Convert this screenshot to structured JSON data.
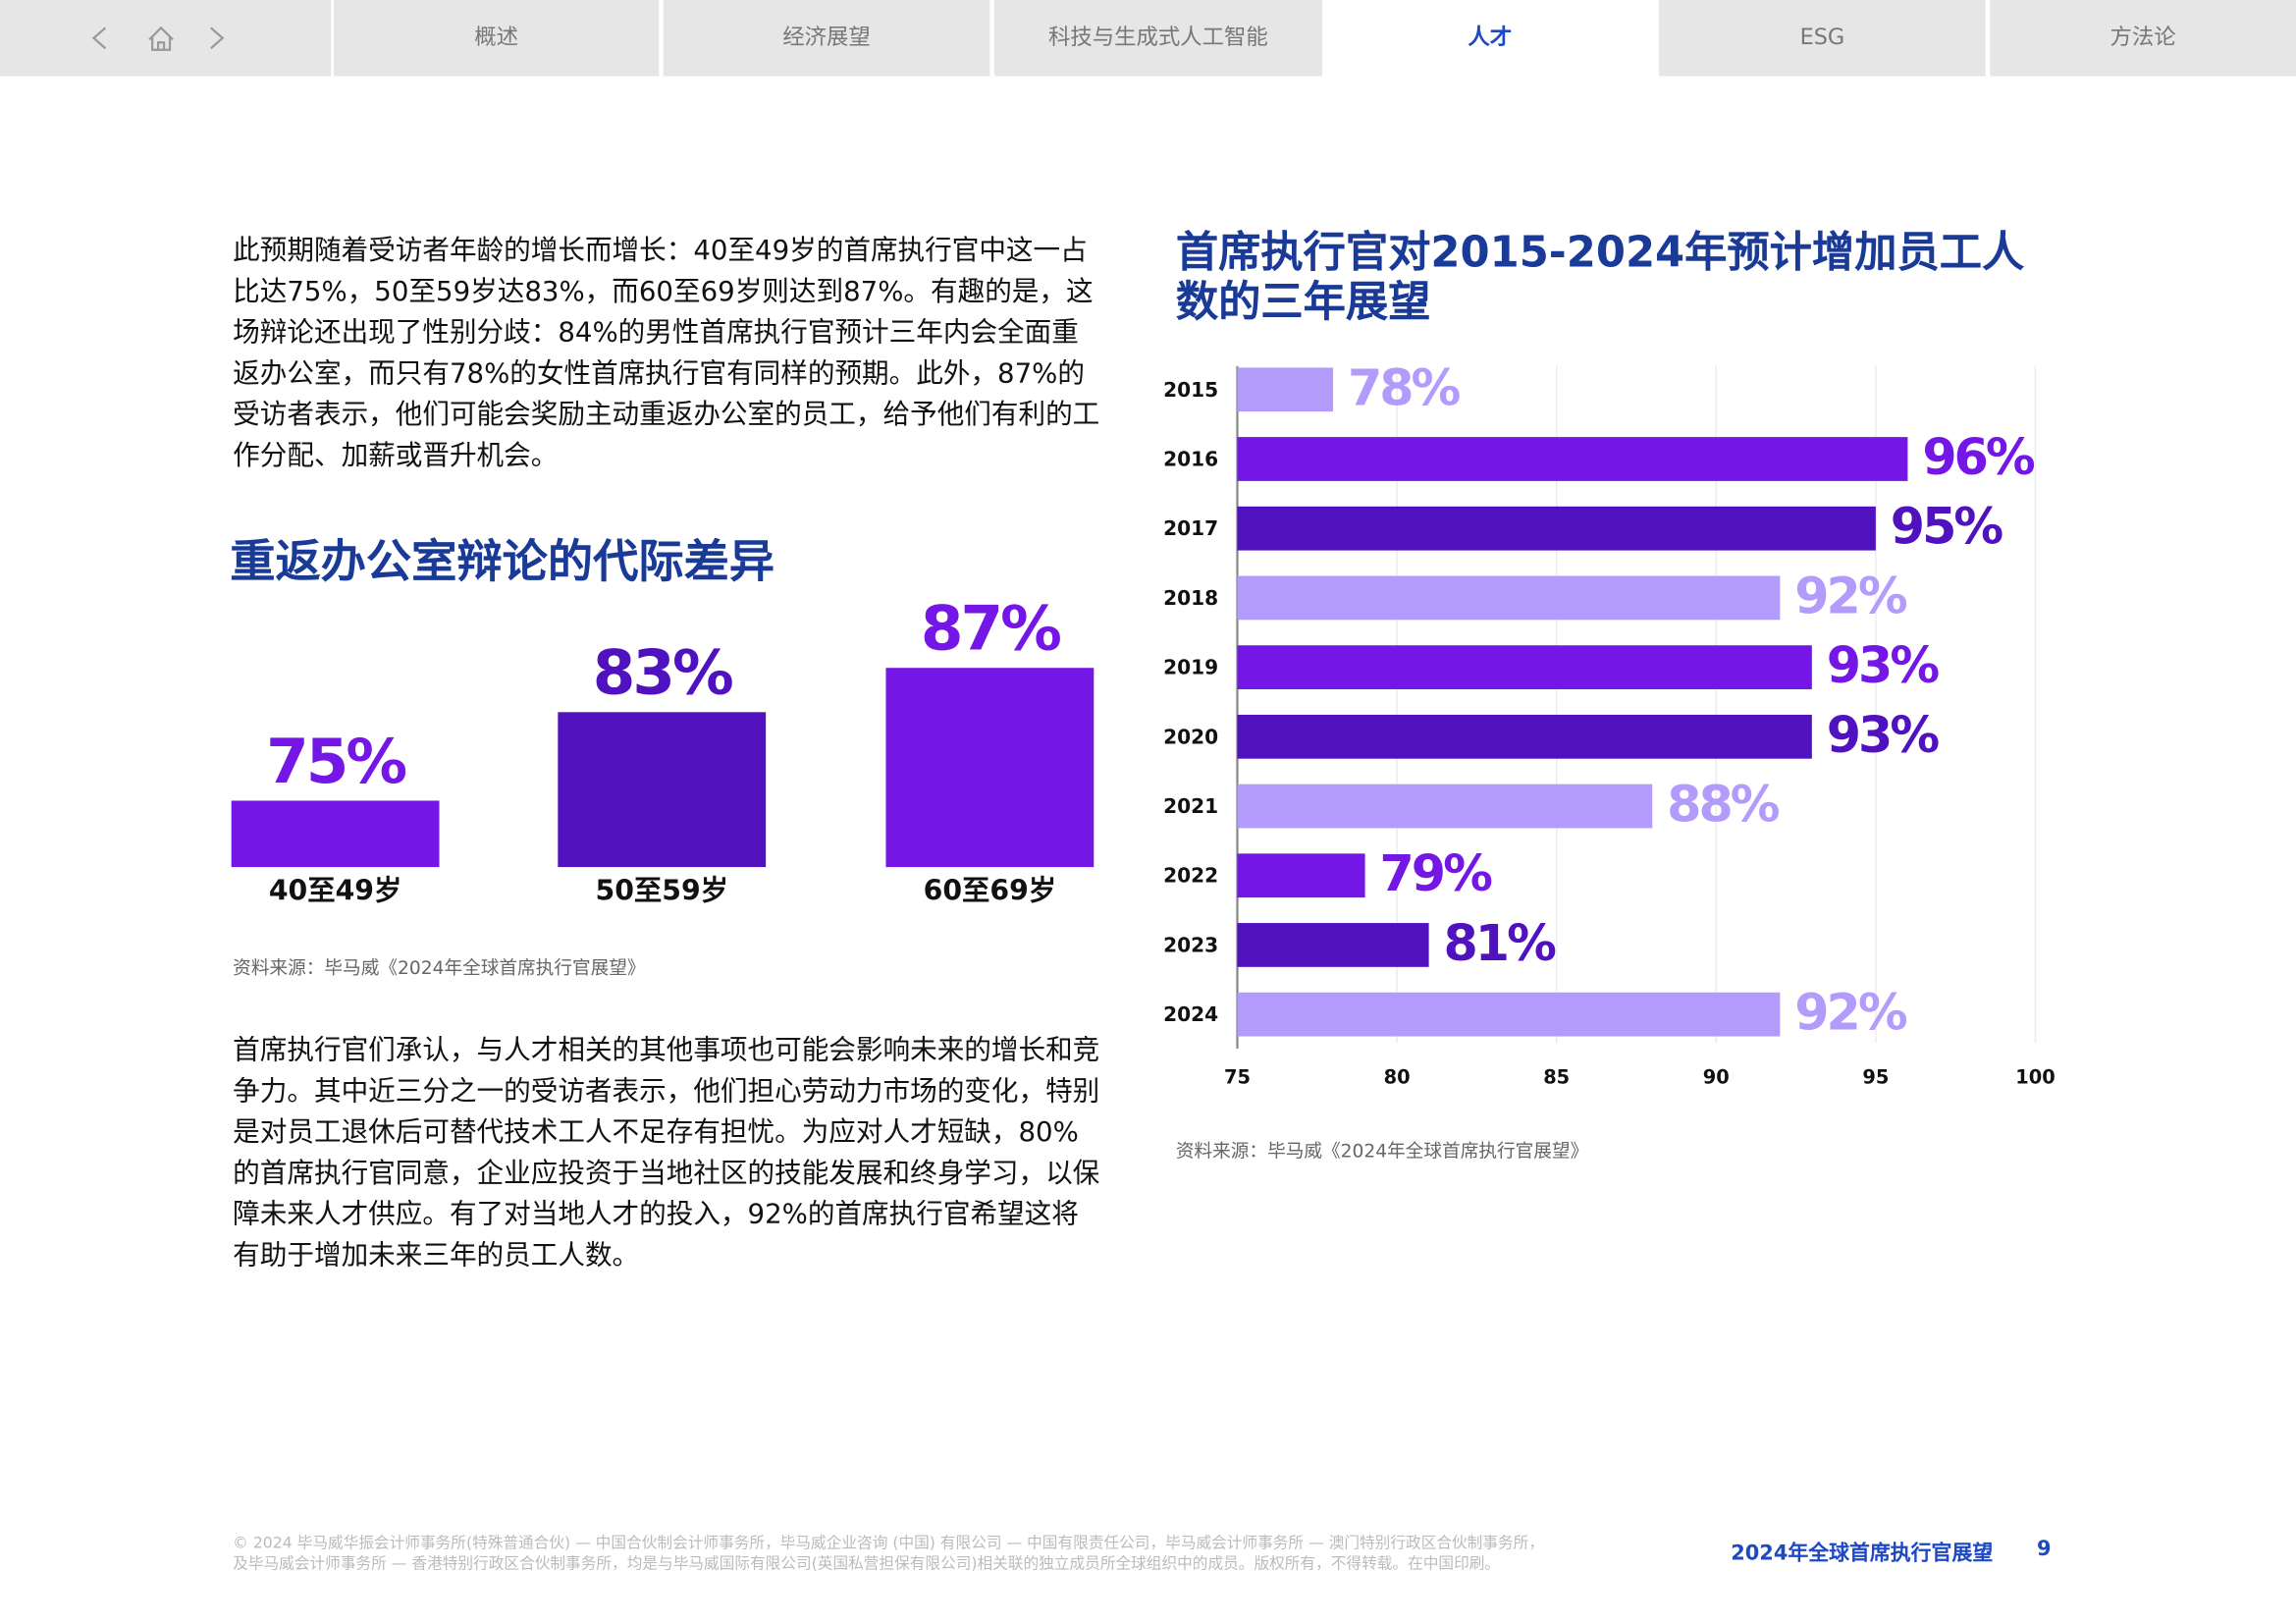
{
  "nav": {
    "tabs": [
      "概述",
      "经济展望",
      "科技与生成式人工智能",
      "人才",
      "ESG",
      "方法论"
    ]
  },
  "paragraphs": [
    "此预期随着受访者年龄的增长而增长：40至49岁的首席执行官中这一占比达75%，50至59岁达83%，而60至69岁则达到87%。有趣的是，这场辩论还出现了性别分歧：84%的男性首席执行官预计三年内会全面重返办公室，而只有78%的女性首席执行官有同样的预期。此外，87%的受访者表示，他们可能会奖励主动重返办公室的员工，给予他们有利的工作分配、加薪或晋升机会。",
    "首席执行官们承认，与人才相关的其他事项也可能会影响未来的增长和竞争力。其中近三分之一的受访者表示，他们担心劳动力市场的变化，特别是对员工退休后可替代技术工人不足存有担忧。为应对人才短缺，80%的首席执行官同意，企业应投资于当地社区的技能发展和终身学习，以保障未来人才供应。有了对当地人才的投入，92%的首席执行官希望这将有助于增加未来三年的员工人数。"
  ],
  "chart_data": [
    {
      "type": "bar",
      "title": "重返办公室辩论的代际差异",
      "categories": [
        "40至49岁",
        "50至59岁",
        "60至69岁"
      ],
      "values": [
        75,
        83,
        87
      ],
      "value_labels": [
        "75%",
        "83%",
        "87%"
      ],
      "colors": [
        "#7316e6",
        "#5011bf",
        "#7316e6"
      ],
      "ylim": [
        69,
        87
      ],
      "source": "资料来源：毕马威《2024年全球首席执行官展望》"
    },
    {
      "type": "barh",
      "title": "首席执行官对2015-2024年预计增加员工人数的三年展望",
      "categories": [
        "2015",
        "2016",
        "2017",
        "2018",
        "2019",
        "2020",
        "2021",
        "2022",
        "2023",
        "2024"
      ],
      "values": [
        78,
        96,
        95,
        92,
        93,
        93,
        88,
        79,
        81,
        92
      ],
      "value_labels": [
        "78%",
        "96%",
        "95%",
        "92%",
        "93%",
        "93%",
        "88%",
        "79%",
        "81%",
        "92%"
      ],
      "colors": [
        "#b39bfb",
        "#7316e6",
        "#5011bf",
        "#b39bfb",
        "#7316e6",
        "#5011bf",
        "#b39bfb",
        "#7316e6",
        "#5011bf",
        "#b39bfb"
      ],
      "xlim": [
        75,
        100
      ],
      "xticks": [
        75,
        80,
        85,
        90,
        95,
        100
      ],
      "grid": true,
      "source": "资料来源：毕马威《2024年全球首席执行官展望》"
    }
  ],
  "footer": {
    "legal": [
      "© 2024 毕马威华振会计师事务所(特殊普通合伙) — 中国合伙制会计师事务所，毕马威企业咨询 (中国) 有限公司 — 中国有限责任公司，毕马威会计师事务所 — 澳门特别行政区合伙制事务所，",
      "及毕马威会计师事务所 — 香港特别行政区合伙制事务所，均是与毕马威国际有限公司(英国私营担保有限公司)相关联的独立成员所全球组织中的成员。版权所有，不得转载。在中国印刷。"
    ],
    "title": "2024年全球首席执行官展望",
    "page": 9
  }
}
